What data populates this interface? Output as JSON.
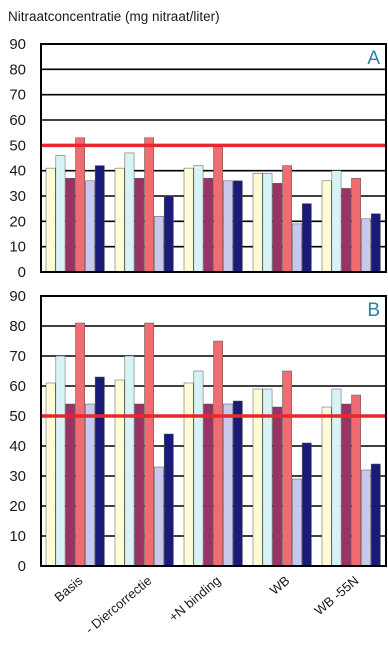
{
  "chart_data": {
    "type": "bar",
    "title": "Nitraatconcentratie (mg nitraat/liter)",
    "categories": [
      "Basis",
      "- Diercorrectie",
      "+N binding",
      "WB",
      "WB -55N"
    ],
    "ylim": [
      0,
      90
    ],
    "yticks": [
      0,
      10,
      20,
      30,
      40,
      50,
      60,
      70,
      80,
      90
    ],
    "grid": true,
    "reference_line": {
      "value": 50,
      "color": "#e8262d"
    },
    "series_colors": [
      "#fefbd6",
      "#d8f3f6",
      "#993366",
      "#ef6d70",
      "#c8c8ec",
      "#1a1a78"
    ],
    "panels": [
      {
        "label": "A",
        "series": [
          {
            "values": [
              41,
              41,
              41,
              39,
              36
            ]
          },
          {
            "values": [
              46,
              47,
              42,
              39,
              40
            ]
          },
          {
            "values": [
              37,
              37,
              37,
              35,
              33
            ]
          },
          {
            "values": [
              53,
              53,
              50,
              42,
              37
            ]
          },
          {
            "values": [
              36,
              22,
              36,
              19,
              21
            ]
          },
          {
            "values": [
              42,
              30,
              36,
              27,
              23
            ]
          }
        ]
      },
      {
        "label": "B",
        "series": [
          {
            "values": [
              61,
              62,
              61,
              59,
              53
            ]
          },
          {
            "values": [
              70,
              70,
              65,
              59,
              59
            ]
          },
          {
            "values": [
              54,
              54,
              54,
              53,
              54
            ]
          },
          {
            "values": [
              81,
              81,
              75,
              65,
              57
            ]
          },
          {
            "values": [
              54,
              33,
              54,
              29,
              32
            ]
          },
          {
            "values": [
              63,
              44,
              55,
              41,
              34
            ]
          }
        ]
      }
    ]
  }
}
